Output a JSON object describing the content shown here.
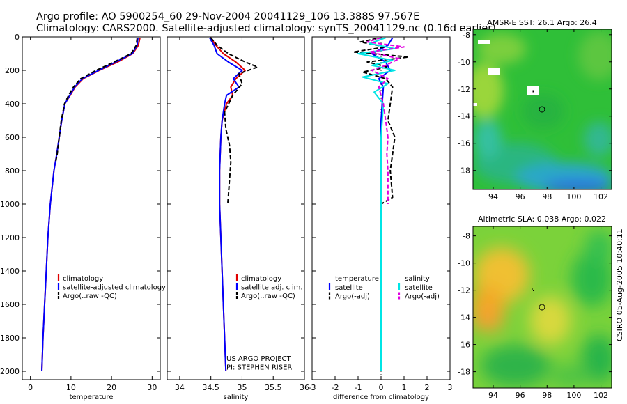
{
  "header": {
    "line1": "Argo profile: AO 5900254_60 29-Nov-2004 20041129_106 13.388S 97.567E",
    "line2": "Climatology: CARS2000. Satellite-adjusted climatology: synTS_20041129.nc (0.16d earlier)"
  },
  "side_stamp": "CSIRO 05-Aug-2005 10:40:11",
  "colors": {
    "climatology": "#e00000",
    "satellite": "#0000ff",
    "argo": "#000000",
    "salinity_sat": "#00e5e5",
    "salinity_argo": "#e000e0"
  },
  "chart_data": [
    {
      "type": "line",
      "id": "temperature",
      "xlabel": "temperature",
      "ylabel": "",
      "xlim": [
        -2,
        32
      ],
      "ylim": [
        0,
        2050
      ],
      "y_inverted": true,
      "xticks": [
        0,
        10,
        20,
        30
      ],
      "yticks": [
        0,
        200,
        400,
        600,
        800,
        1000,
        1200,
        1400,
        1600,
        1800,
        2000
      ],
      "legend": [
        "climatology",
        "satellite-adjusted climatology",
        "Argo(..raw -QC)"
      ],
      "series": [
        {
          "name": "climatology",
          "style": "solid",
          "color": "#e00000",
          "x": [
            27.0,
            26.6,
            25.2,
            21.5,
            17.0,
            13.0,
            11.0,
            9.8,
            8.5,
            7.7,
            7.1,
            6.5,
            5.8,
            4.9,
            4.3,
            3.9,
            3.5,
            3.1,
            2.8
          ],
          "y": [
            5,
            50,
            100,
            150,
            200,
            250,
            300,
            350,
            400,
            500,
            600,
            700,
            800,
            1000,
            1200,
            1400,
            1600,
            1800,
            2000
          ]
        },
        {
          "name": "satellite-adjusted climatology",
          "style": "solid",
          "color": "#0000ff",
          "x": [
            26.5,
            26.3,
            25.1,
            21.0,
            16.8,
            12.8,
            10.9,
            9.7,
            8.5,
            7.7,
            7.1,
            6.5,
            5.8,
            4.9,
            4.3,
            3.9,
            3.5,
            3.1,
            2.8
          ],
          "y": [
            5,
            50,
            100,
            150,
            200,
            250,
            300,
            350,
            400,
            500,
            600,
            700,
            800,
            1000,
            1200,
            1400,
            1600,
            1800,
            2000
          ]
        },
        {
          "name": "Argo(..raw -QC)",
          "style": "dashed",
          "color": "#000000",
          "x": [
            26.3,
            26.1,
            24.8,
            20.6,
            16.2,
            12.4,
            10.6,
            9.4,
            8.4,
            7.6,
            7.1,
            6.6,
            6.2
          ],
          "y": [
            10,
            50,
            100,
            150,
            200,
            250,
            300,
            350,
            400,
            500,
            600,
            700,
            750
          ]
        }
      ]
    },
    {
      "type": "line",
      "id": "salinity",
      "xlabel": "salinity",
      "ylabel": "",
      "xlim": [
        33.8,
        36
      ],
      "ylim": [
        0,
        2050
      ],
      "y_inverted": true,
      "xticks": [
        34,
        34.5,
        35,
        35.5,
        36
      ],
      "legend": [
        "climatology",
        "satellite adj. clim.",
        "Argo(..raw -QC)"
      ],
      "annotation": [
        "US ARGO PROJECT",
        "PI: STEPHEN RISER"
      ],
      "series": [
        {
          "name": "climatology",
          "style": "solid",
          "color": "#e00000",
          "x": [
            34.5,
            34.58,
            34.7,
            34.9,
            35.05,
            34.9,
            34.82,
            34.85,
            34.75,
            34.68,
            34.66,
            34.64,
            34.64,
            34.66,
            34.69,
            34.72,
            34.74
          ],
          "y": [
            5,
            50,
            100,
            150,
            200,
            250,
            300,
            350,
            400,
            500,
            600,
            800,
            1000,
            1200,
            1500,
            1800,
            2000
          ]
        },
        {
          "name": "satellite adj. clim.",
          "style": "solid",
          "color": "#0000ff",
          "x": [
            34.48,
            34.55,
            34.6,
            34.78,
            35.0,
            34.86,
            34.95,
            34.75,
            34.72,
            34.68,
            34.66,
            34.64,
            34.64,
            34.66,
            34.69,
            34.72,
            34.74
          ],
          "y": [
            5,
            50,
            100,
            150,
            200,
            250,
            300,
            350,
            400,
            500,
            600,
            800,
            1000,
            1200,
            1500,
            1800,
            2000
          ]
        },
        {
          "name": "Argo(..raw -QC)",
          "style": "dashed",
          "color": "#000000",
          "x": [
            34.5,
            34.6,
            34.78,
            35.05,
            35.25,
            34.95,
            35.0,
            34.85,
            34.72,
            34.74,
            34.8,
            34.82,
            34.8,
            34.78,
            34.77
          ],
          "y": [
            5,
            50,
            100,
            150,
            180,
            220,
            280,
            350,
            450,
            550,
            650,
            750,
            850,
            950,
            1000
          ]
        }
      ]
    },
    {
      "type": "line",
      "id": "difference",
      "xlabel": "difference from climatology",
      "ylabel": "",
      "xlim": [
        -3,
        3
      ],
      "ylim": [
        0,
        2050
      ],
      "y_inverted": true,
      "xticks": [
        -3,
        -2,
        -1,
        0,
        1,
        2,
        3
      ],
      "legend_temperature": {
        "heading": "temperature",
        "items": [
          "satellite",
          "Argo(-adj)"
        ]
      },
      "legend_salinity": {
        "heading": "salinity",
        "items": [
          "satellite",
          "Argo(-adj)"
        ]
      },
      "series": [
        {
          "name": "temperature satellite",
          "style": "solid",
          "color": "#0000ff",
          "x": [
            0.5,
            0.3,
            -0.4,
            0.2,
            0.4,
            -0.1,
            0.1,
            0.05,
            0.0,
            0.0,
            0.0,
            0.0,
            0.0
          ],
          "y": [
            5,
            50,
            100,
            150,
            200,
            250,
            300,
            400,
            500,
            600,
            700,
            800,
            1000
          ]
        },
        {
          "name": "temperature Argo(-adj)",
          "style": "dashed",
          "color": "#000000",
          "x": [
            -0.2,
            -0.9,
            0.2,
            -1.2,
            1.2,
            -0.6,
            0.3,
            -0.8,
            0.2,
            0.5,
            0.4,
            0.3,
            0.6,
            0.5,
            0.4,
            0.5,
            0.0
          ],
          "y": [
            10,
            30,
            60,
            90,
            120,
            150,
            180,
            210,
            250,
            300,
            400,
            500,
            600,
            700,
            800,
            960,
            1000
          ]
        },
        {
          "name": "salinity satellite",
          "style": "solid",
          "color": "#00e5e5",
          "x": [
            0.2,
            -0.5,
            0.6,
            -1.0,
            0.5,
            -0.4,
            0.6,
            -0.8,
            0.3,
            -0.3,
            0.1,
            0.0,
            0.0,
            0.0,
            0.0
          ],
          "y": [
            5,
            40,
            70,
            100,
            140,
            170,
            200,
            240,
            280,
            330,
            400,
            600,
            800,
            1000,
            2000
          ]
        },
        {
          "name": "salinity Argo(-adj)",
          "style": "dashed",
          "color": "#e000e0",
          "x": [
            0.0,
            -0.6,
            1.0,
            -0.5,
            0.8,
            0.2,
            -0.4,
            0.3,
            -0.1,
            0.1,
            0.2,
            0.3,
            0.25,
            0.3,
            0.3
          ],
          "y": [
            5,
            30,
            60,
            90,
            130,
            170,
            200,
            250,
            300,
            400,
            500,
            600,
            700,
            800,
            1000
          ]
        }
      ]
    },
    {
      "type": "heatmap",
      "id": "sst_map",
      "title": "AMSR-E SST: 26.1 Argo: 26.4",
      "xlim": [
        92.5,
        102.8
      ],
      "ylim": [
        -19.4,
        -7.6
      ],
      "xticks": [
        94,
        96,
        98,
        100,
        102
      ],
      "yticks": [
        -8,
        -10,
        -12,
        -14,
        -16,
        -18
      ],
      "float_position": [
        97.567,
        -13.388
      ]
    },
    {
      "type": "heatmap",
      "id": "sla_map",
      "title": "Altimetric SLA: 0.038 Argo: 0.022",
      "xlim": [
        92.5,
        102.8
      ],
      "ylim": [
        -19.2,
        -7.3
      ],
      "xticks": [
        94,
        96,
        98,
        100,
        102
      ],
      "yticks": [
        -8,
        -10,
        -12,
        -14,
        -16,
        -18
      ],
      "float_position": [
        97.567,
        -13.388
      ]
    }
  ]
}
